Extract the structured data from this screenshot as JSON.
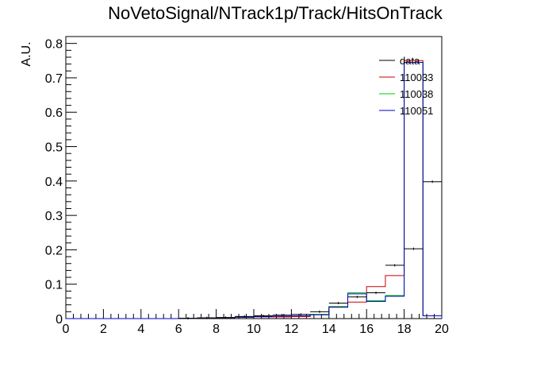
{
  "chart_data": {
    "type": "histogram",
    "title": "NoVetoSignal/NTrack1p/Track/HitsOnTrack",
    "xlabel": "",
    "ylabel": "A.U.",
    "xlim": [
      0,
      20
    ],
    "ylim": [
      0,
      0.82
    ],
    "x_ticks": [
      0,
      2,
      4,
      6,
      8,
      10,
      12,
      14,
      16,
      18,
      20
    ],
    "y_ticks": [
      0,
      0.1,
      0.2,
      0.3,
      0.4,
      0.5,
      0.6,
      0.7,
      0.8
    ],
    "x_tick_labels": [
      "0",
      "2",
      "4",
      "6",
      "8",
      "10",
      "12",
      "14",
      "16",
      "18",
      "20"
    ],
    "y_tick_labels": [
      "0",
      "0.1",
      "0.2",
      "0.3",
      "0.4",
      "0.5",
      "0.6",
      "0.7",
      "0.8"
    ],
    "legend_position": "top-right",
    "bin_edges": [
      0,
      1,
      2,
      3,
      4,
      5,
      6,
      7,
      8,
      9,
      10,
      11,
      12,
      13,
      14,
      15,
      16,
      17,
      18,
      19,
      20
    ],
    "data": {
      "name": "data",
      "color": "#000000",
      "values": [
        0,
        0,
        0,
        0,
        0,
        0,
        0.001,
        0.002,
        0.003,
        0.006,
        0.008,
        0.01,
        0.012,
        0.02,
        0.045,
        0.063,
        0.075,
        0.155,
        0.203,
        0.398
      ]
    },
    "series": [
      {
        "name": "110033",
        "color": "#cc0000",
        "values": [
          0,
          0,
          0,
          0,
          0,
          0,
          0.001,
          0.002,
          0.002,
          0.004,
          0.005,
          0.005,
          0.006,
          0.012,
          0.035,
          0.048,
          0.093,
          0.125,
          0.75,
          0.008
        ]
      },
      {
        "name": "110038",
        "color": "#00cc00",
        "values": [
          0,
          0,
          0,
          0,
          0,
          0,
          0.001,
          0.002,
          0.003,
          0.004,
          0.006,
          0.007,
          0.008,
          0.012,
          0.035,
          0.075,
          0.052,
          0.067,
          0.745,
          0.008
        ]
      },
      {
        "name": "110051",
        "color": "#0000cc",
        "values": [
          0,
          0,
          0,
          0,
          0,
          0,
          0.001,
          0.002,
          0.003,
          0.004,
          0.006,
          0.007,
          0.008,
          0.011,
          0.033,
          0.072,
          0.05,
          0.065,
          0.745,
          0.008
        ]
      }
    ]
  }
}
